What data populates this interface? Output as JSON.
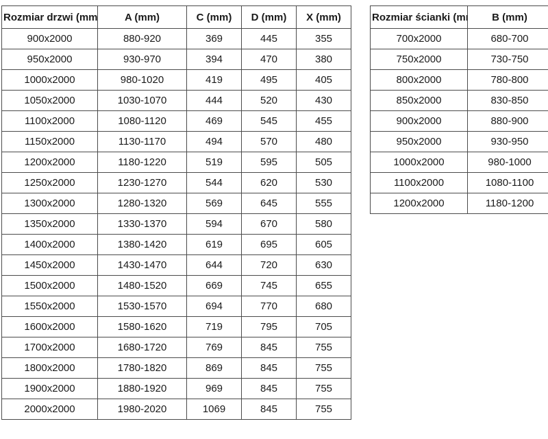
{
  "door_table": {
    "headers": [
      "Rozmiar drzwi (mm)",
      "A (mm)",
      "C (mm)",
      "D (mm)",
      "X (mm)"
    ],
    "rows": [
      [
        "900x2000",
        "880-920",
        "369",
        "445",
        "355"
      ],
      [
        "950x2000",
        "930-970",
        "394",
        "470",
        "380"
      ],
      [
        "1000x2000",
        "980-1020",
        "419",
        "495",
        "405"
      ],
      [
        "1050x2000",
        "1030-1070",
        "444",
        "520",
        "430"
      ],
      [
        "1100x2000",
        "1080-1120",
        "469",
        "545",
        "455"
      ],
      [
        "1150x2000",
        "1130-1170",
        "494",
        "570",
        "480"
      ],
      [
        "1200x2000",
        "1180-1220",
        "519",
        "595",
        "505"
      ],
      [
        "1250x2000",
        "1230-1270",
        "544",
        "620",
        "530"
      ],
      [
        "1300x2000",
        "1280-1320",
        "569",
        "645",
        "555"
      ],
      [
        "1350x2000",
        "1330-1370",
        "594",
        "670",
        "580"
      ],
      [
        "1400x2000",
        "1380-1420",
        "619",
        "695",
        "605"
      ],
      [
        "1450x2000",
        "1430-1470",
        "644",
        "720",
        "630"
      ],
      [
        "1500x2000",
        "1480-1520",
        "669",
        "745",
        "655"
      ],
      [
        "1550x2000",
        "1530-1570",
        "694",
        "770",
        "680"
      ],
      [
        "1600x2000",
        "1580-1620",
        "719",
        "795",
        "705"
      ],
      [
        "1700x2000",
        "1680-1720",
        "769",
        "845",
        "755"
      ],
      [
        "1800x2000",
        "1780-1820",
        "869",
        "845",
        "755"
      ],
      [
        "1900x2000",
        "1880-1920",
        "969",
        "845",
        "755"
      ],
      [
        "2000x2000",
        "1980-2020",
        "1069",
        "845",
        "755"
      ]
    ]
  },
  "wall_table": {
    "headers": [
      "Rozmiar ścianki (mm)",
      "B (mm)"
    ],
    "rows": [
      [
        "700x2000",
        "680-700"
      ],
      [
        "750x2000",
        "730-750"
      ],
      [
        "800x2000",
        "780-800"
      ],
      [
        "850x2000",
        "830-850"
      ],
      [
        "900x2000",
        "880-900"
      ],
      [
        "950x2000",
        "930-950"
      ],
      [
        "1000x2000",
        "980-1000"
      ],
      [
        "1100x2000",
        "1080-1100"
      ],
      [
        "1200x2000",
        "1180-1200"
      ]
    ]
  },
  "colors": {
    "background": "#ffffff",
    "border": "#4a4a4a",
    "text": "#1a1a1a"
  }
}
